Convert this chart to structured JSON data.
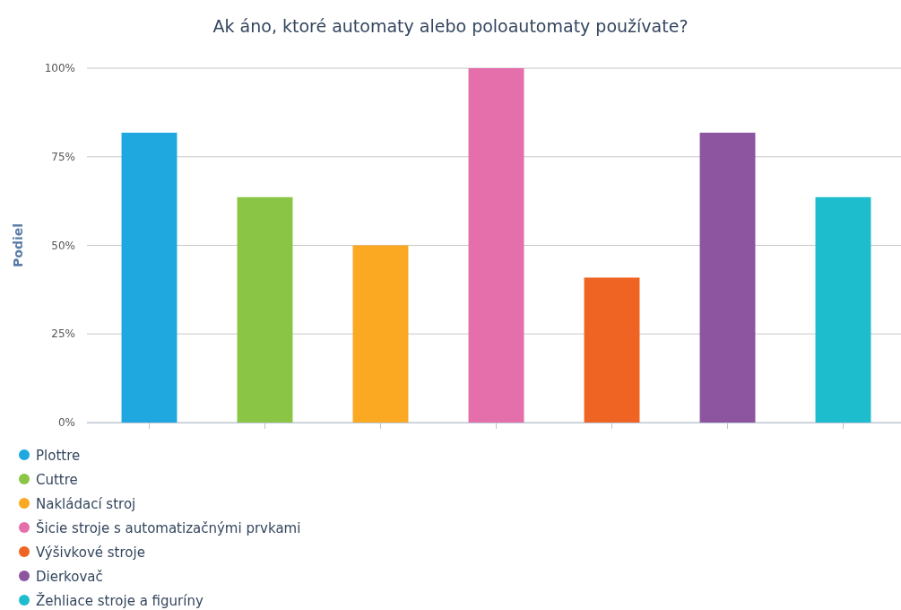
{
  "chart_data": {
    "type": "bar",
    "title": "Ak áno, ktoré automaty alebo poloautomaty používate?",
    "ylabel": "Podiel",
    "categories": [
      null,
      null,
      null,
      null,
      null,
      null,
      null
    ],
    "series": [
      {
        "name": "Plottre",
        "color": "#1fa8e0",
        "values": [
          81.8,
          null,
          null,
          null,
          null,
          null,
          null
        ]
      },
      {
        "name": "Cuttre",
        "color": "#8bc546",
        "values": [
          null,
          63.6,
          null,
          null,
          null,
          null,
          null
        ]
      },
      {
        "name": "Nakládací stroj",
        "color": "#fba823",
        "values": [
          null,
          null,
          50,
          null,
          null,
          null,
          null
        ]
      },
      {
        "name": "Šicie stroje s automatizačnými prvkami",
        "color": "#e56fab",
        "values": [
          null,
          null,
          null,
          100,
          null,
          null,
          null
        ]
      },
      {
        "name": "Výšivkové stroje",
        "color": "#f06423",
        "values": [
          null,
          null,
          null,
          null,
          40.9,
          null,
          null
        ]
      },
      {
        "name": "Dierkovač",
        "color": "#8d55a0",
        "values": [
          null,
          null,
          null,
          null,
          null,
          81.8,
          null
        ]
      },
      {
        "name": "Žehliace stroje a figuríny",
        "color": "#1dbdce",
        "values": [
          null,
          null,
          null,
          null,
          null,
          null,
          63.6
        ]
      }
    ],
    "ylim": [
      0,
      100
    ],
    "yticks": [
      {
        "value": 0,
        "label": "0%"
      },
      {
        "value": 25,
        "label": "25%"
      },
      {
        "value": 50,
        "label": "50%"
      },
      {
        "value": 75,
        "label": "75%"
      },
      {
        "value": 100,
        "label": "100%"
      }
    ],
    "grid": "y",
    "legend": "bottom"
  }
}
